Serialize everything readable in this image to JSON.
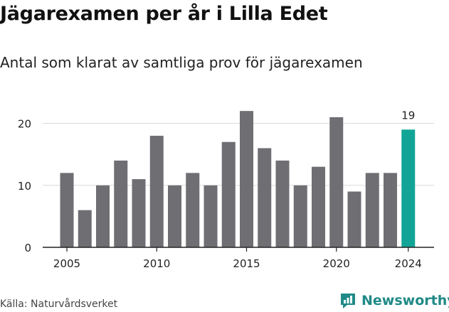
{
  "title": "Jägarexamen per år i Lilla Edet",
  "subtitle": "Antal som klarat av samtliga prov för jägarexamen",
  "source": "Källa: Naturvårdsverket",
  "brand": {
    "name": "Newsworthy",
    "icon": "newsworthy-logo-icon",
    "color": "#1f8a87"
  },
  "colors": {
    "bar": "#6f6e73",
    "highlight": "#12a597",
    "grid": "#d9d9d9",
    "axis": "#222222"
  },
  "chart_data": {
    "type": "bar",
    "title": "Jägarexamen per år i Lilla Edet",
    "subtitle": "Antal som klarat av samtliga prov för jägarexamen",
    "categories": [
      2005,
      2006,
      2007,
      2008,
      2009,
      2010,
      2011,
      2012,
      2013,
      2014,
      2015,
      2016,
      2017,
      2018,
      2019,
      2020,
      2021,
      2022,
      2023,
      2024
    ],
    "values": [
      12,
      6,
      10,
      14,
      11,
      18,
      10,
      12,
      10,
      17,
      22,
      16,
      14,
      10,
      13,
      21,
      9,
      12,
      12,
      19
    ],
    "highlight_index": 19,
    "data_labels": [
      {
        "index": 19,
        "text": "19"
      }
    ],
    "x_ticks": [
      "2005",
      "2010",
      "2015",
      "2020",
      "2024"
    ],
    "y_ticks": [
      "0",
      "10",
      "20"
    ],
    "ylim": [
      0,
      22
    ],
    "grid": true,
    "xlabel": "",
    "ylabel": ""
  }
}
